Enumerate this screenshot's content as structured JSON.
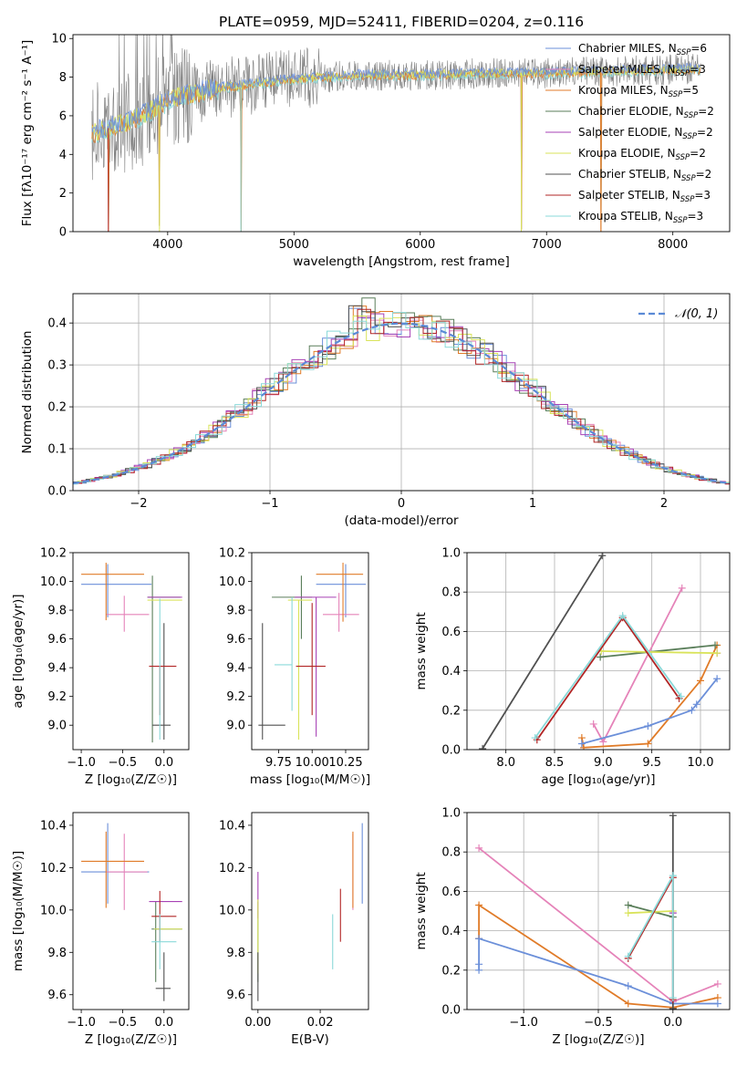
{
  "figure": {
    "title": "PLATE=0959, MJD=52411, FIBERID=0204, z=0.116"
  },
  "colors": {
    "chabrier_miles": "#6b8fd9",
    "salpeter_miles": "#e583b9",
    "kroupa_miles": "#e07b28",
    "chabrier_elodie": "#5a7e5a",
    "salpeter_elodie": "#a742b5",
    "kroupa_elodie": "#d9e35a",
    "chabrier_stelib": "#505050",
    "salpeter_stelib": "#b22525",
    "kroupa_stelib": "#8ad9d9",
    "gauss": "#5b8ad6",
    "grid": "#b0b0b0",
    "data_gray": "#7f7f7f"
  },
  "chart_data": [
    {
      "id": "spectrum",
      "type": "line",
      "xlabel": "wavelength [Angstrom, rest frame]",
      "ylabel": "Flux [f$\\lambda$10$^{-17}$ erg cm$^{-2}$ s$^{-1}$ A$^{-1}$]",
      "ylabel_text": "Flux [fλ10⁻¹⁷ erg cm⁻² s⁻¹ A⁻¹]",
      "xlim": [
        3250,
        8450
      ],
      "ylim": [
        0,
        10.2
      ],
      "xticks": [
        4000,
        5000,
        6000,
        7000,
        8000
      ],
      "yticks": [
        0,
        2,
        4,
        6,
        8,
        10
      ],
      "grid": false,
      "legend_position": "top-right",
      "legend": [
        {
          "label": "Chabrier MILES, N",
          "sub": "SSP",
          "suffix": "=6",
          "color_key": "chabrier_miles"
        },
        {
          "label": "Salpeter MILES, N",
          "sub": "SSP",
          "suffix": "=3",
          "color_key": "salpeter_miles"
        },
        {
          "label": "Kroupa MILES, N",
          "sub": "SSP",
          "suffix": "=5",
          "color_key": "kroupa_miles"
        },
        {
          "label": "Chabrier ELODIE, N",
          "sub": "SSP",
          "suffix": "=2",
          "color_key": "chabrier_elodie"
        },
        {
          "label": "Salpeter ELODIE, N",
          "sub": "SSP",
          "suffix": "=2",
          "color_key": "salpeter_elodie"
        },
        {
          "label": "Kroupa ELODIE, N",
          "sub": "SSP",
          "suffix": "=2",
          "color_key": "kroupa_elodie"
        },
        {
          "label": "Chabrier STELIB, N",
          "sub": "SSP",
          "suffix": "=2",
          "color_key": "chabrier_stelib"
        },
        {
          "label": "Salpeter STELIB, N",
          "sub": "SSP",
          "suffix": "=3",
          "color_key": "salpeter_stelib"
        },
        {
          "label": "Kroupa STELIB, N",
          "sub": "SSP",
          "suffix": "=3",
          "color_key": "kroupa_stelib"
        }
      ],
      "continuum": [
        [
          3400,
          5.1
        ],
        [
          3600,
          5.5
        ],
        [
          3800,
          6.0
        ],
        [
          3950,
          6.6
        ],
        [
          4100,
          7.0
        ],
        [
          4300,
          7.3
        ],
        [
          4500,
          7.5
        ],
        [
          5000,
          7.9
        ],
        [
          5500,
          8.1
        ],
        [
          6000,
          8.1
        ],
        [
          6500,
          8.2
        ],
        [
          7000,
          8.2
        ],
        [
          7500,
          8.3
        ],
        [
          8000,
          8.4
        ],
        [
          8200,
          8.4
        ]
      ],
      "dips": [
        [
          3530,
          0.0
        ],
        [
          3935,
          0.3
        ],
        [
          4580,
          0.0
        ],
        [
          6800,
          0.1
        ],
        [
          7430,
          0.0
        ]
      ]
    },
    {
      "id": "residuals",
      "type": "histogram",
      "xlabel": "(data-model)/error",
      "ylabel": "Normed distribution",
      "xlim": [
        -2.5,
        2.5
      ],
      "ylim": [
        0,
        0.47
      ],
      "xticks": [
        -2,
        -1,
        0,
        1,
        2
      ],
      "yticks": [
        0.0,
        0.1,
        0.2,
        0.3,
        0.4
      ],
      "grid": true,
      "legend_position": "top-right",
      "legend_label": "𝒩(0, 1)",
      "bin_width": 0.1,
      "reference_curve": "gaussian(0,1)"
    },
    {
      "id": "age_vs_Z",
      "type": "scatter",
      "xlabel": "Z [log₁₀(Z/Z☉)]",
      "ylabel": "age  [log₁₀(age/yr)]",
      "xlim": [
        -1.1,
        0.3
      ],
      "ylim": [
        8.83,
        10.2
      ],
      "xticks": [
        -1.0,
        -0.5,
        0.0
      ],
      "yticks": [
        9.0,
        9.2,
        9.4,
        9.6,
        9.8,
        10.0,
        10.2
      ],
      "grid": false,
      "points": [
        {
          "m": "chabrier_miles",
          "x": -1.0,
          "y": 9.98,
          "xlo": -1.0,
          "xhi": -0.15,
          "ylo": 9.98,
          "yhi": 9.98
        },
        {
          "m": "chabrier_miles",
          "x": -0.68,
          "y": 9.98,
          "xlo": -0.68,
          "xhi": -0.68,
          "ylo": 9.75,
          "yhi": 10.12
        },
        {
          "m": "salpeter_miles",
          "x": -0.48,
          "y": 9.77,
          "xlo": -0.7,
          "xhi": -0.18,
          "ylo": 9.65,
          "yhi": 9.9
        },
        {
          "m": "kroupa_miles",
          "x": -0.7,
          "y": 10.05,
          "xlo": -1.0,
          "xhi": -0.24,
          "ylo": 9.73,
          "yhi": 10.13
        },
        {
          "m": "chabrier_elodie",
          "x": -0.14,
          "y": 9.89,
          "xlo": -0.2,
          "xhi": 0.2,
          "ylo": 8.88,
          "yhi": 10.04
        },
        {
          "m": "salpeter_elodie",
          "x": 0.0,
          "y": 9.89,
          "xlo": -0.2,
          "xhi": 0.22,
          "ylo": 9.89,
          "yhi": 9.89
        },
        {
          "m": "kroupa_elodie",
          "x": -0.1,
          "y": 9.87,
          "xlo": -0.2,
          "xhi": 0.22,
          "ylo": 9.87,
          "yhi": 9.87
        },
        {
          "m": "chabrier_stelib",
          "x": 0.0,
          "y": 9.0,
          "xlo": -0.14,
          "xhi": 0.08,
          "ylo": 8.9,
          "yhi": 9.71
        },
        {
          "m": "salpeter_stelib",
          "x": -0.05,
          "y": 9.41,
          "xlo": -0.18,
          "xhi": 0.15,
          "ylo": 9.07,
          "yhi": 9.41
        },
        {
          "m": "kroupa_stelib",
          "x": -0.05,
          "y": 9.42,
          "xlo": -0.05,
          "xhi": -0.05,
          "ylo": 8.9,
          "yhi": 9.88
        }
      ]
    },
    {
      "id": "age_vs_mass",
      "type": "scatter",
      "xlabel": "mass [log₁₀(M/M☉)]",
      "ylabel": "",
      "xlim": [
        9.55,
        10.42
      ],
      "ylim": [
        8.83,
        10.2
      ],
      "xticks": [
        9.75,
        10.0,
        10.25
      ],
      "yticks": [
        9.0,
        9.2,
        9.4,
        9.6,
        9.8,
        10.0,
        10.2
      ],
      "grid": false,
      "points": [
        {
          "m": "chabrier_miles",
          "x": 10.2,
          "y": 9.98,
          "xlo": 10.03,
          "xhi": 10.4,
          "ylo": 9.98,
          "yhi": 9.98
        },
        {
          "m": "chabrier_miles",
          "x": 10.25,
          "y": 9.98,
          "xlo": 10.25,
          "xhi": 10.25,
          "ylo": 9.75,
          "yhi": 10.12
        },
        {
          "m": "salpeter_miles",
          "x": 10.2,
          "y": 9.77,
          "xlo": 10.08,
          "xhi": 10.35,
          "ylo": 9.65,
          "yhi": 9.92
        },
        {
          "m": "kroupa_miles",
          "x": 10.23,
          "y": 10.05,
          "xlo": 10.03,
          "xhi": 10.38,
          "ylo": 9.72,
          "yhi": 10.13
        },
        {
          "m": "chabrier_elodie",
          "x": 9.92,
          "y": 9.89,
          "xlo": 9.7,
          "xhi": 10.0,
          "ylo": 9.6,
          "yhi": 10.04
        },
        {
          "m": "salpeter_elodie",
          "x": 10.03,
          "y": 9.89,
          "xlo": 9.87,
          "xhi": 10.18,
          "ylo": 8.92,
          "yhi": 9.89
        },
        {
          "m": "kroupa_elodie",
          "x": 9.9,
          "y": 9.87,
          "xlo": 9.82,
          "xhi": 10.0,
          "ylo": 8.9,
          "yhi": 9.87
        },
        {
          "m": "chabrier_stelib",
          "x": 9.63,
          "y": 9.0,
          "xlo": 9.6,
          "xhi": 9.8,
          "ylo": 8.9,
          "yhi": 9.71
        },
        {
          "m": "salpeter_stelib",
          "x": 10.0,
          "y": 9.41,
          "xlo": 9.88,
          "xhi": 10.1,
          "ylo": 9.07,
          "yhi": 9.85
        },
        {
          "m": "kroupa_stelib",
          "x": 9.85,
          "y": 9.42,
          "xlo": 9.72,
          "xhi": 9.85,
          "ylo": 9.1,
          "yhi": 9.89
        }
      ]
    },
    {
      "id": "weight_vs_age",
      "type": "line",
      "xlabel": "age  [log₁₀(age/yr)]",
      "ylabel": "mass weight",
      "xlim": [
        7.6,
        10.3
      ],
      "ylim": [
        0.0,
        1.0
      ],
      "xticks": [
        8.0,
        8.5,
        9.0,
        9.5,
        10.0
      ],
      "yticks": [
        0.0,
        0.2,
        0.4,
        0.6,
        0.8,
        1.0
      ],
      "grid": true,
      "series": [
        {
          "m": "chabrier_stelib",
          "x": [
            7.76,
            8.99
          ],
          "y": [
            0.005,
            0.985
          ]
        },
        {
          "m": "salpeter_miles",
          "x": [
            8.9,
            9.0,
            9.81
          ],
          "y": [
            0.13,
            0.04,
            0.82
          ]
        },
        {
          "m": "kroupa_miles",
          "x": [
            8.78,
            8.8,
            9.46,
            10.0,
            10.17
          ],
          "y": [
            0.06,
            0.01,
            0.03,
            0.35,
            0.53
          ]
        },
        {
          "m": "chabrier_miles",
          "x": [
            8.78,
            9.46,
            9.91,
            9.96,
            10.17
          ],
          "y": [
            0.03,
            0.12,
            0.2,
            0.23,
            0.36
          ]
        },
        {
          "m": "chabrier_elodie",
          "x": [
            8.97,
            10.15
          ],
          "y": [
            0.47,
            0.53
          ]
        },
        {
          "m": "salpeter_elodie",
          "x": [
            10.17
          ],
          "y": [
            0.49
          ]
        },
        {
          "m": "kroupa_elodie",
          "x": [
            8.98,
            10.17
          ],
          "y": [
            0.5,
            0.49
          ]
        },
        {
          "m": "salpeter_stelib",
          "x": [
            8.32,
            9.2,
            9.78
          ],
          "y": [
            0.05,
            0.67,
            0.26
          ]
        },
        {
          "m": "kroupa_stelib",
          "x": [
            8.3,
            9.2,
            9.8
          ],
          "y": [
            0.06,
            0.68,
            0.27
          ]
        }
      ]
    },
    {
      "id": "mass_vs_Z",
      "type": "scatter",
      "xlabel": "Z [log₁₀(Z/Z☉)]",
      "ylabel": "mass [log₁₀(M/M☉)]",
      "xlim": [
        -1.1,
        0.3
      ],
      "ylim": [
        9.53,
        10.46
      ],
      "xticks": [
        -1.0,
        -0.5,
        0.0
      ],
      "yticks": [
        9.6,
        9.8,
        10.0,
        10.2,
        10.4
      ],
      "grid": false,
      "points": [
        {
          "m": "chabrier_miles",
          "x": -1.0,
          "y": 10.18,
          "xlo": -1.0,
          "xhi": -0.18,
          "ylo": 10.18,
          "yhi": 10.18
        },
        {
          "m": "chabrier_miles",
          "x": -0.68,
          "y": 10.18,
          "xlo": -0.68,
          "xhi": -0.68,
          "ylo": 10.03,
          "yhi": 10.41
        },
        {
          "m": "salpeter_miles",
          "x": -0.48,
          "y": 10.18,
          "xlo": -0.7,
          "xhi": -0.2,
          "ylo": 10.0,
          "yhi": 10.36
        },
        {
          "m": "kroupa_miles",
          "x": -0.7,
          "y": 10.23,
          "xlo": -1.0,
          "xhi": -0.24,
          "ylo": 10.01,
          "yhi": 10.37
        },
        {
          "m": "chabrier_elodie",
          "x": -0.1,
          "y": 9.91,
          "xlo": -0.15,
          "xhi": 0.22,
          "ylo": 9.66,
          "yhi": 10.04
        },
        {
          "m": "salpeter_elodie",
          "x": 0.0,
          "y": 10.04,
          "xlo": -0.18,
          "xhi": 0.22,
          "ylo": 10.04,
          "yhi": 10.04
        },
        {
          "m": "kroupa_elodie",
          "x": -0.1,
          "y": 9.91,
          "xlo": -0.12,
          "xhi": 0.22,
          "ylo": 9.91,
          "yhi": 9.91
        },
        {
          "m": "chabrier_stelib",
          "x": 0.0,
          "y": 9.63,
          "xlo": -0.1,
          "xhi": 0.08,
          "ylo": 9.57,
          "yhi": 9.8
        },
        {
          "m": "salpeter_stelib",
          "x": -0.05,
          "y": 9.97,
          "xlo": -0.15,
          "xhi": 0.15,
          "ylo": 9.85,
          "yhi": 10.09
        },
        {
          "m": "kroupa_stelib",
          "x": -0.05,
          "y": 9.85,
          "xlo": -0.15,
          "xhi": 0.15,
          "ylo": 9.72,
          "yhi": 9.98
        }
      ]
    },
    {
      "id": "mass_vs_ebv",
      "type": "scatter",
      "xlabel": "E(B-V)",
      "ylabel": "",
      "xlim": [
        -0.002,
        0.0355
      ],
      "ylim": [
        9.53,
        10.46
      ],
      "xticks": [
        0.0,
        0.02
      ],
      "yticks": [
        9.6,
        9.8,
        10.0,
        10.2,
        10.4
      ],
      "grid": false,
      "points": [
        {
          "m": "chabrier_miles",
          "x": 0.0335,
          "y": 10.18,
          "ylo": 10.03,
          "yhi": 10.41
        },
        {
          "m": "salpeter_miles",
          "x": 0.0305,
          "y": 10.18,
          "ylo": 10.0,
          "yhi": 10.36
        },
        {
          "m": "kroupa_miles",
          "x": 0.0305,
          "y": 10.2,
          "ylo": 10.01,
          "yhi": 10.37
        },
        {
          "m": "chabrier_elodie",
          "x": 0.0,
          "y": 9.91,
          "ylo": 9.66,
          "yhi": 10.04
        },
        {
          "m": "salpeter_elodie",
          "x": 0.0,
          "y": 10.04,
          "ylo": 9.96,
          "yhi": 10.18
        },
        {
          "m": "kroupa_elodie",
          "x": 0.0,
          "y": 9.91,
          "ylo": 9.7,
          "yhi": 10.05
        },
        {
          "m": "chabrier_stelib",
          "x": 0.0,
          "y": 9.63,
          "ylo": 9.57,
          "yhi": 9.8
        },
        {
          "m": "salpeter_stelib",
          "x": 0.0265,
          "y": 9.97,
          "ylo": 9.85,
          "yhi": 10.1
        },
        {
          "m": "kroupa_stelib",
          "x": 0.024,
          "y": 9.85,
          "ylo": 9.72,
          "yhi": 9.98
        }
      ]
    },
    {
      "id": "weight_vs_Z",
      "type": "line",
      "xlabel": "Z [log₁₀(Z/Z☉)]",
      "ylabel": "mass weight",
      "xlim": [
        -1.38,
        0.38
      ],
      "ylim": [
        0.0,
        1.0
      ],
      "xticks": [
        -1.0,
        -0.5,
        0.0
      ],
      "yticks": [
        0.0,
        0.2,
        0.4,
        0.6,
        0.8,
        1.0
      ],
      "grid": true,
      "series": [
        {
          "m": "salpeter_miles",
          "x": [
            -1.3,
            0.0,
            0.3
          ],
          "y": [
            0.82,
            0.04,
            0.13
          ]
        },
        {
          "m": "kroupa_miles",
          "x": [
            -1.3,
            -1.3,
            -0.3,
            0.0,
            0.3
          ],
          "y": [
            0.36,
            0.53,
            0.03,
            0.01,
            0.06
          ]
        },
        {
          "m": "chabrier_miles",
          "x": [
            -1.3,
            -1.3,
            -1.3,
            -0.3,
            0.0,
            0.3
          ],
          "y": [
            0.2,
            0.23,
            0.36,
            0.12,
            0.03,
            0.03
          ]
        },
        {
          "m": "chabrier_stelib",
          "x": [
            0.0,
            0.0
          ],
          "y": [
            0.005,
            0.985
          ]
        },
        {
          "m": "chabrier_elodie",
          "x": [
            -0.3,
            0.0
          ],
          "y": [
            0.53,
            0.47
          ]
        },
        {
          "m": "kroupa_elodie",
          "x": [
            -0.3,
            0.0
          ],
          "y": [
            0.49,
            0.5
          ]
        },
        {
          "m": "salpeter_elodie",
          "x": [
            0.0
          ],
          "y": [
            0.49
          ]
        },
        {
          "m": "salpeter_stelib",
          "x": [
            -0.3,
            0.0,
            0.0
          ],
          "y": [
            0.26,
            0.67,
            0.05
          ]
        },
        {
          "m": "kroupa_stelib",
          "x": [
            -0.3,
            0.0,
            0.0
          ],
          "y": [
            0.27,
            0.68,
            0.06
          ]
        }
      ]
    }
  ]
}
